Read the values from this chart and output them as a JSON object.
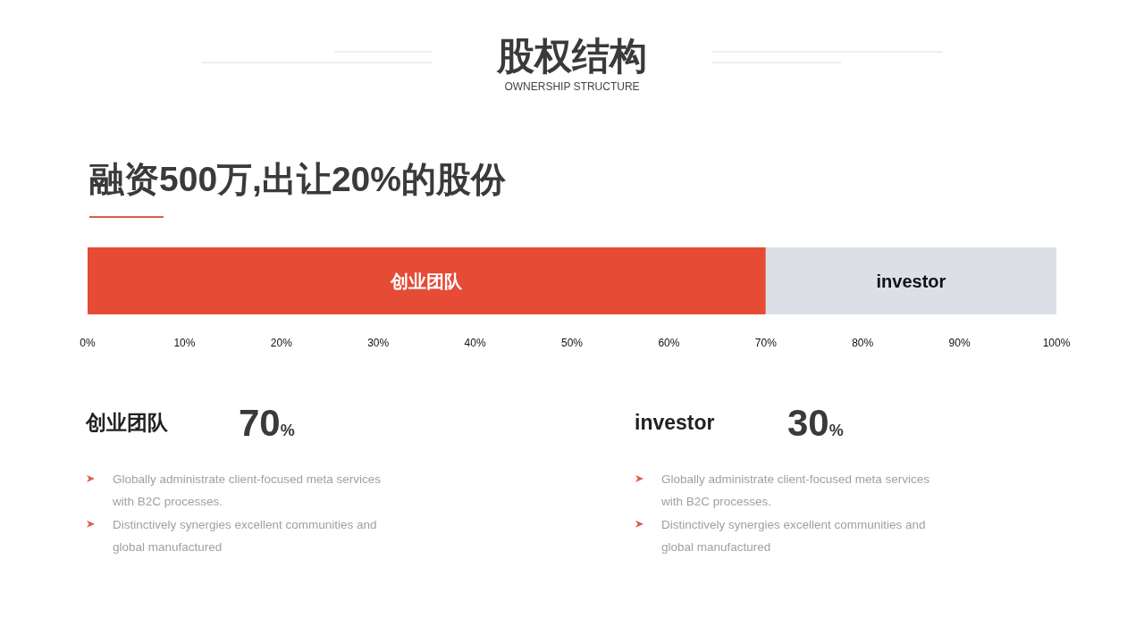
{
  "chart_data": [
    {
      "type": "bar",
      "title": "股权结构",
      "subtitle": "OWNERSHIP STRUCTURE",
      "annotations": [
        "融资500万,出让20%的股份"
      ],
      "orientation": "horizontal",
      "stacked": true,
      "categories": [
        null
      ],
      "series": [
        {
          "name": "创业团队",
          "color": "#e54b35",
          "values": [
            70
          ]
        },
        {
          "name": "investor",
          "color": "#dcdfe6",
          "values": [
            30
          ]
        }
      ],
      "xlim": [
        0,
        100
      ],
      "xticks": [
        {
          "value": 0,
          "label": "0%"
        },
        {
          "value": 10,
          "label": "10%"
        },
        {
          "value": 20,
          "label": "20%"
        },
        {
          "value": 30,
          "label": "30%"
        },
        {
          "value": 40,
          "label": "40%"
        },
        {
          "value": 50,
          "label": "50%"
        },
        {
          "value": 60,
          "label": "60%"
        },
        {
          "value": 70,
          "label": "70%"
        },
        {
          "value": 80,
          "label": "80%"
        },
        {
          "value": 90,
          "label": "90%"
        },
        {
          "value": 100,
          "label": "100%"
        }
      ]
    },
    {
      "type": "other",
      "title": "创业团队",
      "subtitle": "70%",
      "annotations": [
        "Globally administrate client-focused meta services with B2C processes.",
        "Distinctively synergies excellent communities and global manufactured"
      ]
    },
    {
      "type": "other",
      "title": "investor",
      "subtitle": "30%",
      "annotations": [
        "Globally administrate client-focused meta services with B2C processes.",
        "Distinctively synergies excellent communities and global manufactured"
      ]
    }
  ]
}
